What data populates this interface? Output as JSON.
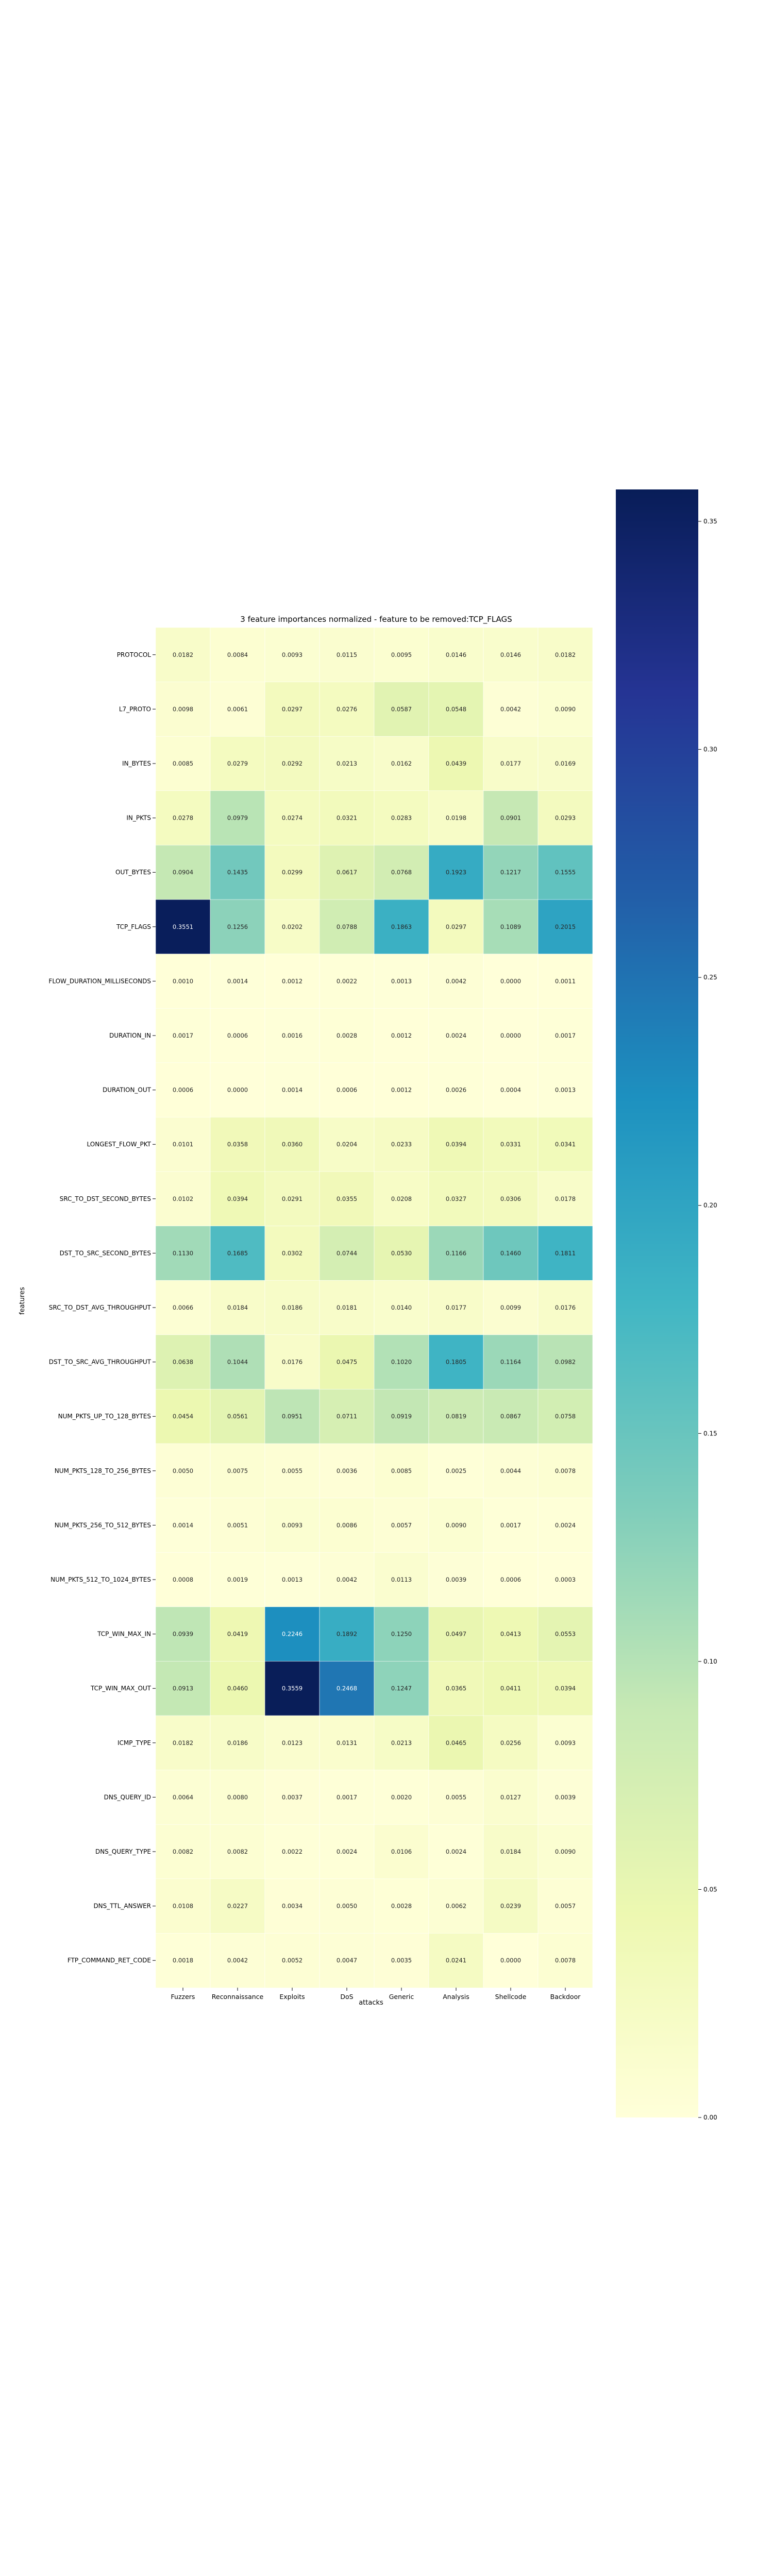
{
  "chart_data": {
    "type": "heatmap",
    "title": "3 feature importances normalized - feature to be removed:TCP_FLAGS",
    "xlabel": "attacks",
    "ylabel": "features",
    "colormap": "YlGnBu",
    "color_range": [
      0.0,
      0.357
    ],
    "colorbar_ticks": [
      0.0,
      0.05,
      0.1,
      0.15,
      0.2,
      0.25,
      0.3,
      0.35
    ],
    "colorbar_tick_labels": [
      "0.00",
      "0.05",
      "0.10",
      "0.15",
      "0.20",
      "0.25",
      "0.30",
      "0.35"
    ],
    "columns": [
      "Fuzzers",
      "Reconnaissance",
      "Exploits",
      "DoS",
      "Generic",
      "Analysis",
      "Shellcode",
      "Backdoor"
    ],
    "rows": [
      "PROTOCOL",
      "L7_PROTO",
      "IN_BYTES",
      "IN_PKTS",
      "OUT_BYTES",
      "TCP_FLAGS",
      "FLOW_DURATION_MILLISECONDS",
      "DURATION_IN",
      "DURATION_OUT",
      "LONGEST_FLOW_PKT",
      "SRC_TO_DST_SECOND_BYTES",
      "DST_TO_SRC_SECOND_BYTES",
      "SRC_TO_DST_AVG_THROUGHPUT",
      "DST_TO_SRC_AVG_THROUGHPUT",
      "NUM_PKTS_UP_TO_128_BYTES",
      "NUM_PKTS_128_TO_256_BYTES",
      "NUM_PKTS_256_TO_512_BYTES",
      "NUM_PKTS_512_TO_1024_BYTES",
      "TCP_WIN_MAX_IN",
      "TCP_WIN_MAX_OUT",
      "ICMP_TYPE",
      "DNS_QUERY_ID",
      "DNS_QUERY_TYPE",
      "DNS_TTL_ANSWER",
      "FTP_COMMAND_RET_CODE"
    ],
    "values": [
      [
        0.0182,
        0.0084,
        0.0093,
        0.0115,
        0.0095,
        0.0146,
        0.0146,
        0.0182
      ],
      [
        0.0098,
        0.0061,
        0.0297,
        0.0276,
        0.0587,
        0.0548,
        0.0042,
        0.009
      ],
      [
        0.0085,
        0.0279,
        0.0292,
        0.0213,
        0.0162,
        0.0439,
        0.0177,
        0.0169
      ],
      [
        0.0278,
        0.0979,
        0.0274,
        0.0321,
        0.0283,
        0.0198,
        0.0901,
        0.0293
      ],
      [
        0.0904,
        0.1435,
        0.0299,
        0.0617,
        0.0768,
        0.1923,
        0.1217,
        0.1555
      ],
      [
        0.3551,
        0.1256,
        0.0202,
        0.0788,
        0.1863,
        0.0297,
        0.1089,
        0.2015
      ],
      [
        0.001,
        0.0014,
        0.0012,
        0.0022,
        0.0013,
        0.0042,
        0.0,
        0.0011
      ],
      [
        0.0017,
        0.0006,
        0.0016,
        0.0028,
        0.0012,
        0.0024,
        0.0,
        0.0017
      ],
      [
        0.0006,
        0.0,
        0.0014,
        0.0006,
        0.0012,
        0.0026,
        0.0004,
        0.0013
      ],
      [
        0.0101,
        0.0358,
        0.036,
        0.0204,
        0.0233,
        0.0394,
        0.0331,
        0.0341
      ],
      [
        0.0102,
        0.0394,
        0.0291,
        0.0355,
        0.0208,
        0.0327,
        0.0306,
        0.0178
      ],
      [
        0.113,
        0.1685,
        0.0302,
        0.0744,
        0.053,
        0.1166,
        0.146,
        0.1811
      ],
      [
        0.0066,
        0.0184,
        0.0186,
        0.0181,
        0.014,
        0.0177,
        0.0099,
        0.0176
      ],
      [
        0.0638,
        0.1044,
        0.0176,
        0.0475,
        0.102,
        0.1805,
        0.1164,
        0.0982
      ],
      [
        0.0454,
        0.0561,
        0.0951,
        0.0711,
        0.0919,
        0.0819,
        0.0867,
        0.0758
      ],
      [
        0.005,
        0.0075,
        0.0055,
        0.0036,
        0.0085,
        0.0025,
        0.0044,
        0.0078
      ],
      [
        0.0014,
        0.0051,
        0.0093,
        0.0086,
        0.0057,
        0.009,
        0.0017,
        0.0024
      ],
      [
        0.0008,
        0.0019,
        0.0013,
        0.0042,
        0.0113,
        0.0039,
        0.0006,
        0.0003
      ],
      [
        0.0939,
        0.0419,
        0.2246,
        0.1892,
        0.125,
        0.0497,
        0.0413,
        0.0553
      ],
      [
        0.0913,
        0.046,
        0.3559,
        0.2468,
        0.1247,
        0.0365,
        0.0411,
        0.0394
      ],
      [
        0.0182,
        0.0186,
        0.0123,
        0.0131,
        0.0213,
        0.0465,
        0.0256,
        0.0093
      ],
      [
        0.0064,
        0.008,
        0.0037,
        0.0017,
        0.002,
        0.0055,
        0.0127,
        0.0039
      ],
      [
        0.0082,
        0.0082,
        0.0022,
        0.0024,
        0.0106,
        0.0024,
        0.0184,
        0.009
      ],
      [
        0.0108,
        0.0227,
        0.0034,
        0.005,
        0.0028,
        0.0062,
        0.0239,
        0.0057
      ],
      [
        0.0018,
        0.0042,
        0.0052,
        0.0047,
        0.0035,
        0.0241,
        0.0,
        0.0078
      ]
    ]
  }
}
